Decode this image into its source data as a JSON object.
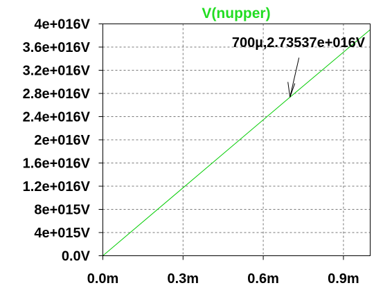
{
  "chart_data": {
    "type": "line",
    "title": "V(nupper)",
    "series": [
      {
        "name": "V(nupper)",
        "x": [
          0.0,
          0.0007,
          0.001
        ],
        "y": [
          0.0,
          2.73537e+16,
          3.9e+16
        ]
      }
    ],
    "x_ticks": [
      {
        "value": 0.0,
        "label": "0.0m"
      },
      {
        "value": 0.0003,
        "label": "0.3m"
      },
      {
        "value": 0.0006,
        "label": "0.6m"
      },
      {
        "value": 0.0009,
        "label": "0.9m"
      }
    ],
    "y_ticks": [
      {
        "value": 0.0,
        "label": "0.0V"
      },
      {
        "value": 4000000000000000.0,
        "label": "4e+015V"
      },
      {
        "value": 8000000000000000.0,
        "label": "8e+015V"
      },
      {
        "value": 1.2e+16,
        "label": "1.2e+016V"
      },
      {
        "value": 1.6e+16,
        "label": "1.6e+016V"
      },
      {
        "value": 2e+16,
        "label": "2e+016V"
      },
      {
        "value": 2.4e+16,
        "label": "2.4e+016V"
      },
      {
        "value": 2.8e+16,
        "label": "2.8e+016V"
      },
      {
        "value": 3.2e+16,
        "label": "3.2e+016V"
      },
      {
        "value": 3.6e+16,
        "label": "3.6e+016V"
      },
      {
        "value": 4e+16,
        "label": "4e+016V"
      }
    ],
    "xlim": [
      0.0,
      0.001
    ],
    "ylim": [
      0.0,
      4e+16
    ],
    "grid": true,
    "annotation": {
      "x": 0.0007,
      "y": 2.73537e+16,
      "text": "700µ,2.73537e+016V"
    }
  },
  "colors": {
    "trace": "#00cc00",
    "title": "#22dd22",
    "axis": "#000000",
    "grid": "#777777",
    "text": "#000000"
  }
}
